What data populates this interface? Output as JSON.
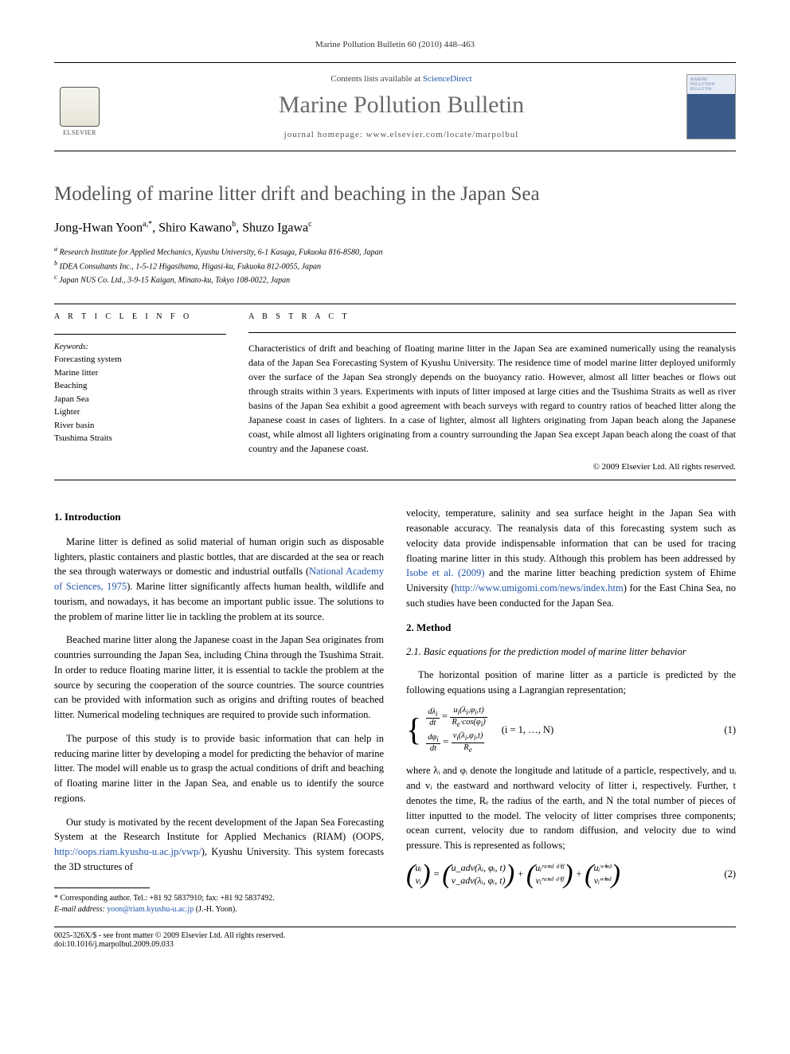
{
  "journal_ref": "Marine Pollution Bulletin 60 (2010) 448–463",
  "header": {
    "contents_prefix": "Contents lists available at ",
    "contents_link": "ScienceDirect",
    "journal_name": "Marine Pollution Bulletin",
    "homepage_prefix": "journal homepage: ",
    "homepage": "www.elsevier.com/locate/marpolbul",
    "publisher": "ELSEVIER"
  },
  "title": "Modeling of marine litter drift and beaching in the Japan Sea",
  "authors": [
    {
      "name": "Jong-Hwan Yoon",
      "marks": "a,*"
    },
    {
      "name": "Shiro Kawano",
      "marks": "b"
    },
    {
      "name": "Shuzo Igawa",
      "marks": "c"
    }
  ],
  "affiliations": [
    "Research Institute for Applied Mechanics, Kyushu University, 6-1 Kasuga, Fukuoka 816-8580, Japan",
    "IDEA Consultants Inc., 1-5-12 Higasihama, Higasi-ku, Fukuoka 812-0055, Japan",
    "Japan NUS Co. Ltd., 3-9-15 Kaigan, Minato-ku, Tokyo 108-0022, Japan"
  ],
  "article_info_head": "A R T I C L E   I N F O",
  "abstract_head": "A B S T R A C T",
  "keywords_label": "Keywords:",
  "keywords": [
    "Forecasting system",
    "Marine litter",
    "Beaching",
    "Japan Sea",
    "Lighter",
    "River basin",
    "Tsushima Straits"
  ],
  "abstract_text": "Characteristics of drift and beaching of floating marine litter in the Japan Sea are examined numerically using the reanalysis data of the Japan Sea Forecasting System of Kyushu University. The residence time of model marine litter deployed uniformly over the surface of the Japan Sea strongly depends on the buoyancy ratio. However, almost all litter beaches or flows out through straits within 3 years. Experiments with inputs of litter imposed at large cities and the Tsushima Straits as well as river basins of the Japan Sea exhibit a good agreement with beach surveys with regard to country ratios of beached litter along the Japanese coast in cases of lighters. In a case of lighter, almost all lighters originating from Japan beach along the Japanese coast, while almost all lighters originating from a country surrounding the Japan Sea except Japan beach along the coast of that country and the Japanese coast.",
  "copyright": "© 2009 Elsevier Ltd. All rights reserved.",
  "sections": {
    "intro_head": "1. Introduction",
    "intro_p1": "Marine litter is defined as solid material of human origin such as disposable lighters, plastic containers and plastic bottles, that are discarded at the sea or reach the sea through waterways or domestic and industrial outfalls (",
    "intro_p1_link": "National Academy of Sciences, 1975",
    "intro_p1_tail": "). Marine litter significantly affects human health, wildlife and tourism, and nowadays, it has become an important public issue. The solutions to the problem of marine litter lie in tackling the problem at its source.",
    "intro_p2": "Beached marine litter along the Japanese coast in the Japan Sea originates from countries surrounding the Japan Sea, including China through the Tsushima Strait. In order to reduce floating marine litter, it is essential to tackle the problem at the source by securing the cooperation of the source countries. The source countries can be provided with information such as origins and drifting routes of beached litter. Numerical modeling techniques are required to provide such information.",
    "intro_p3": "The purpose of this study is to provide basic information that can help in reducing marine litter by developing a model for predicting the behavior of marine litter. The model will enable us to grasp the actual conditions of drift and beaching of floating marine litter in the Japan Sea, and enable us to identify the source regions.",
    "intro_p4a": "Our study is motivated by the recent development of the Japan Sea Forecasting System at the Research Institute for Applied Mechanics (RIAM) (OOPS, ",
    "intro_p4_link": "http://oops.riam.kyushu-u.ac.jp/vwp/",
    "intro_p4b": "), Kyushu University. This system forecasts the 3D structures of",
    "col2_p1a": "velocity, temperature, salinity and sea surface height in the Japan Sea with reasonable accuracy. The reanalysis data of this forecasting system such as velocity data provide indispensable information that can be used for tracing floating marine litter in this study. Although this problem has been addressed by ",
    "col2_p1_link1": "Isobe et al. (2009)",
    "col2_p1b": " and the marine litter beaching prediction system of Ehime University (",
    "col2_p1_link2": "http://www.umigomi.com/news/index.htm",
    "col2_p1c": ") for the East China Sea, no such studies have been conducted for the Japan Sea.",
    "method_head": "2. Method",
    "method_sub": "2.1. Basic equations for the prediction model of marine litter behavior",
    "method_p1": "The horizontal position of marine litter as a particle is predicted by the following equations using a Lagrangian representation;",
    "eq1_row1": {
      "lhs": "dλᵢ/dt",
      "rhs": "uᵢ(λᵢ,φᵢ,t) / (Rₑ·cos(φᵢ))"
    },
    "eq1_row2": {
      "lhs": "dφᵢ/dt",
      "rhs": "vᵢ(λᵢ,φᵢ,t) / Rₑ"
    },
    "eq1_side": "(i = 1, …, N)",
    "eq1_num": "(1)",
    "method_p2": "where λᵢ and φᵢ denote the longitude and latitude of a particle, respectively, and uᵢ and vᵢ the eastward and northward velocity of litter i, respectively. Further, t denotes the time, Rₑ the radius of the earth, and N the total number of pieces of litter inputted to the model. The velocity of litter comprises three components; ocean current, velocity due to random diffusion, and velocity due to wind pressure. This is represented as follows;",
    "eq2_lhs": [
      "uᵢ",
      "vᵢ"
    ],
    "eq2_t1": [
      "u_adv(λᵢ, φᵢ, t)",
      "v_adv(λᵢ, φᵢ, t)"
    ],
    "eq2_t2": [
      "uᵢʳᵃⁿᵈ ᵈⁱᶠᶠ",
      "vᵢʳᵃⁿᵈ ᵈⁱᶠᶠ"
    ],
    "eq2_t3": [
      "uᵢʷⁱⁿᵈ",
      "vᵢʷⁱⁿᵈ"
    ],
    "eq2_num": "(2)"
  },
  "footer": {
    "corr_label": "* Corresponding author. Tel.: +81 92 5837910; fax: +81 92 5837492.",
    "email_label": "E-mail address: ",
    "email": "yoon@riam.kyushu-u.ac.jp",
    "email_tail": " (J.-H. Yoon).",
    "issn_line": "0025-326X/$ - see front matter © 2009 Elsevier Ltd. All rights reserved.",
    "doi_line": "doi:10.1016/j.marpolbul.2009.09.033"
  },
  "colors": {
    "link": "#2255aa",
    "title_gray": "#555555",
    "journal_gray": "#6b6b6b"
  }
}
